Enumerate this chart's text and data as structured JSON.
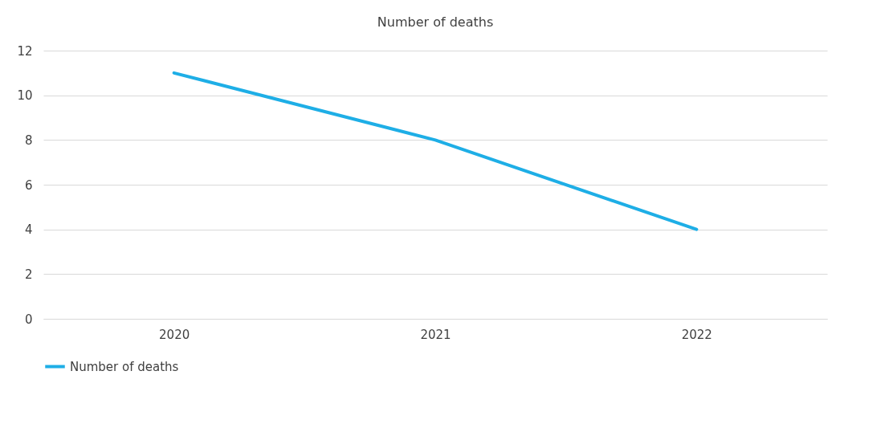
{
  "chart_data": {
    "type": "line",
    "title": "Number of deaths",
    "categories": [
      "2020",
      "2021",
      "2022"
    ],
    "series": [
      {
        "name": "Number of deaths",
        "color": "#1eaee6",
        "values": [
          11,
          8,
          4
        ]
      }
    ],
    "ylim": [
      0,
      12
    ],
    "yticks": [
      0,
      2,
      4,
      6,
      8,
      10,
      12
    ],
    "grid": "y",
    "legend": "bottom",
    "marker": "none",
    "line_style": "solid"
  }
}
